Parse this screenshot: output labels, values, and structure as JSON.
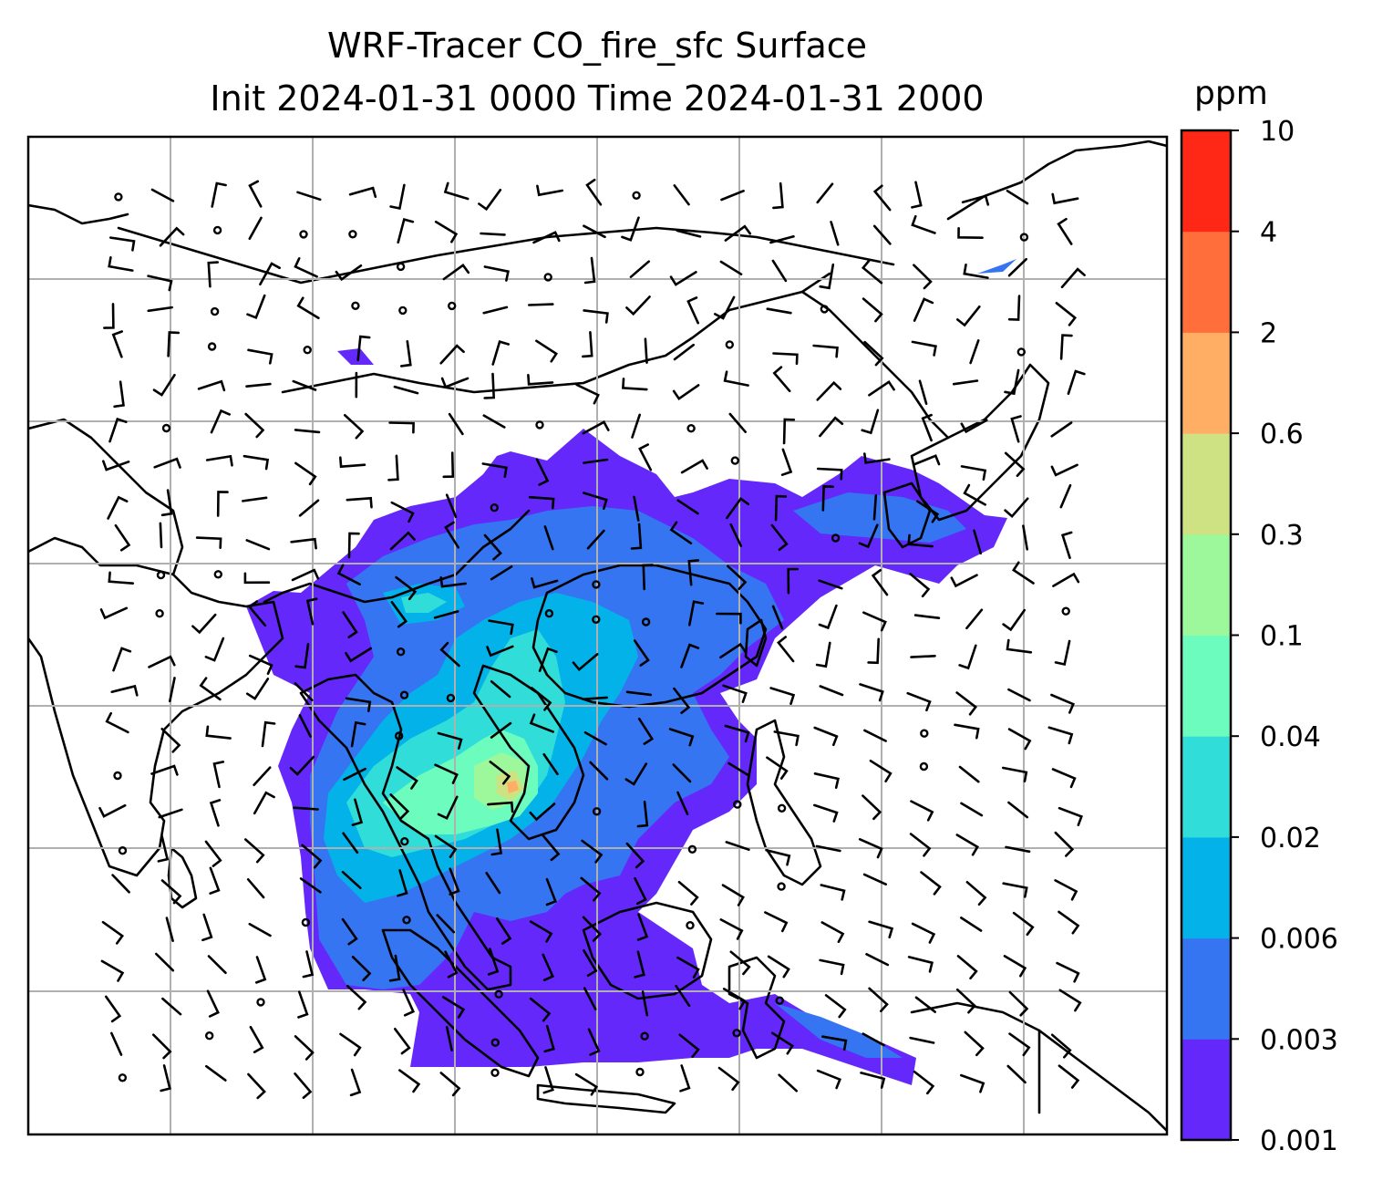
{
  "title": {
    "line1": "WRF-Tracer CO_fire_sfc Surface",
    "line2": "Init 2024-01-31 0000 Time 2024-01-31 2000"
  },
  "colorbar": {
    "units": "ppm",
    "levels": [
      "0.001",
      "0.003",
      "0.006",
      "0.02",
      "0.04",
      "0.1",
      "0.3",
      "0.6",
      "2",
      "4",
      "10"
    ],
    "colors": [
      "#6428fa",
      "#3575f2",
      "#04b2ea",
      "#31ddd8",
      "#6cfcbe",
      "#9cf89a",
      "#cee283",
      "#ffae63",
      "#ff6e3b",
      "#ff2715"
    ]
  },
  "map": {
    "gridlines": true,
    "overlay": "wind barbs",
    "features": [
      "coastlines",
      "country borders"
    ]
  }
}
